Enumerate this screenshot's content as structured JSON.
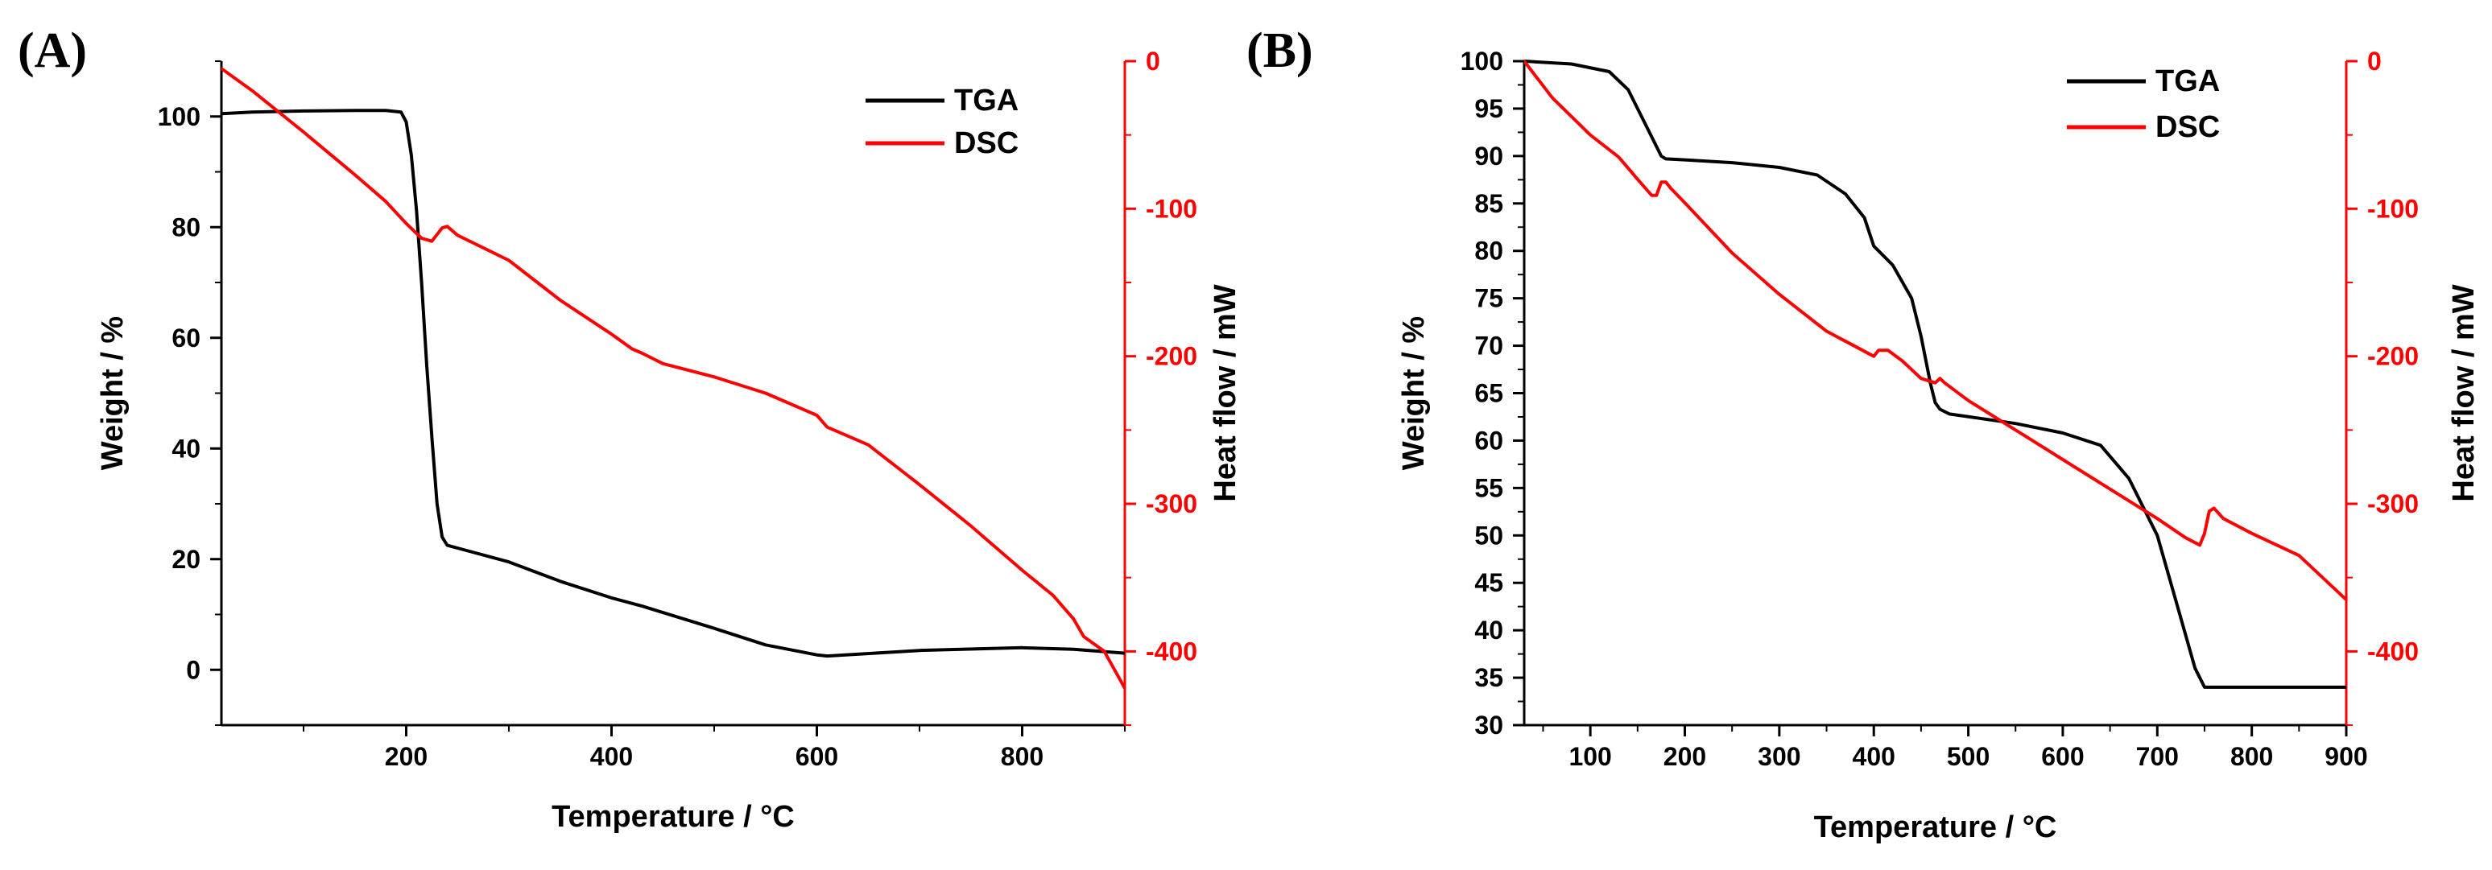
{
  "panels": [
    {
      "letter": "(A)"
    },
    {
      "letter": "(B)"
    }
  ],
  "colors": {
    "tga": "#000000",
    "dsc": "#ff0000"
  },
  "chart_data": [
    {
      "type": "line",
      "panel": "(A)",
      "xlabel": "Temperature / °C",
      "ylabel": "Weight / %",
      "y2label": "Heat flow / mW",
      "xlim": [
        20,
        900
      ],
      "ylim": [
        -10,
        110
      ],
      "y2lim": [
        -450,
        0
      ],
      "xticks": [
        200,
        400,
        600,
        800
      ],
      "yticks": [
        0,
        20,
        40,
        60,
        80,
        100
      ],
      "y2ticks": [
        0,
        -100,
        -200,
        -300,
        -400
      ],
      "legend": "top-right",
      "grid": false,
      "series": [
        {
          "name": "TGA",
          "axis": "left",
          "color": "#000000",
          "x": [
            20,
            50,
            100,
            150,
            180,
            195,
            200,
            205,
            210,
            215,
            220,
            225,
            230,
            235,
            240,
            250,
            300,
            350,
            400,
            430,
            500,
            550,
            600,
            610,
            700,
            800,
            850,
            900
          ],
          "y": [
            100.5,
            100.8,
            101.0,
            101.1,
            101.1,
            100.8,
            99,
            93,
            83,
            70,
            55,
            42,
            30,
            24,
            22.5,
            22,
            19.5,
            16,
            13,
            11.5,
            7.5,
            4.5,
            2.7,
            2.5,
            3.5,
            4,
            3.7,
            3
          ]
        },
        {
          "name": "DSC",
          "axis": "right",
          "color": "#ff0000",
          "x": [
            20,
            50,
            100,
            150,
            180,
            200,
            215,
            225,
            235,
            240,
            250,
            300,
            350,
            400,
            420,
            430,
            450,
            500,
            550,
            600,
            610,
            650,
            700,
            750,
            800,
            830,
            850,
            860,
            880,
            900
          ],
          "y": [
            -5,
            -20,
            -48,
            -77,
            -95,
            -110,
            -120,
            -122,
            -113,
            -112,
            -118,
            -135,
            -162,
            -185,
            -195,
            -198,
            -205,
            -214,
            -225,
            -240,
            -248,
            -260,
            -287,
            -315,
            -345,
            -362,
            -378,
            -390,
            -400,
            -425
          ]
        }
      ]
    },
    {
      "type": "line",
      "panel": "(B)",
      "xlabel": "Temperature / °C",
      "ylabel": "Weight / %",
      "y2label": "Heat flow / mW",
      "xlim": [
        30,
        900
      ],
      "ylim": [
        30,
        100
      ],
      "y2lim": [
        -450,
        0
      ],
      "xticks": [
        100,
        200,
        300,
        400,
        500,
        600,
        700,
        800,
        900
      ],
      "yticks": [
        30,
        35,
        40,
        45,
        50,
        55,
        60,
        65,
        70,
        75,
        80,
        85,
        90,
        95,
        100
      ],
      "y2ticks": [
        0,
        -100,
        -200,
        -300,
        -400
      ],
      "legend": "top-right",
      "grid": false,
      "series": [
        {
          "name": "TGA",
          "axis": "left",
          "color": "#000000",
          "x": [
            30,
            80,
            120,
            140,
            160,
            175,
            180,
            200,
            250,
            300,
            340,
            370,
            390,
            400,
            405,
            420,
            440,
            450,
            460,
            465,
            470,
            480,
            550,
            600,
            640,
            670,
            700,
            720,
            740,
            750,
            800,
            900
          ],
          "y": [
            100,
            99.7,
            98.9,
            97,
            93,
            90,
            89.7,
            89.6,
            89.3,
            88.8,
            88,
            86,
            83.5,
            80.5,
            80,
            78.5,
            75,
            71,
            66,
            64,
            63.3,
            62.8,
            61.8,
            60.8,
            59.5,
            56,
            50,
            43,
            36,
            34,
            34,
            34
          ]
        },
        {
          "name": "DSC",
          "axis": "right",
          "color": "#ff0000",
          "x": [
            30,
            60,
            100,
            130,
            150,
            165,
            170,
            175,
            180,
            185,
            200,
            250,
            300,
            350,
            400,
            405,
            415,
            430,
            450,
            465,
            470,
            475,
            500,
            550,
            600,
            650,
            700,
            730,
            745,
            750,
            755,
            760,
            770,
            800,
            850,
            900
          ],
          "y": [
            0,
            -25,
            -50,
            -65,
            -80,
            -91,
            -91,
            -82,
            -82,
            -86,
            -96,
            -130,
            -158,
            -183,
            -200,
            -196,
            -196,
            -203,
            -215,
            -218,
            -215,
            -218,
            -230,
            -250,
            -270,
            -290,
            -310,
            -323,
            -328,
            -320,
            -305,
            -303,
            -310,
            -320,
            -335,
            -365
          ]
        }
      ]
    }
  ]
}
